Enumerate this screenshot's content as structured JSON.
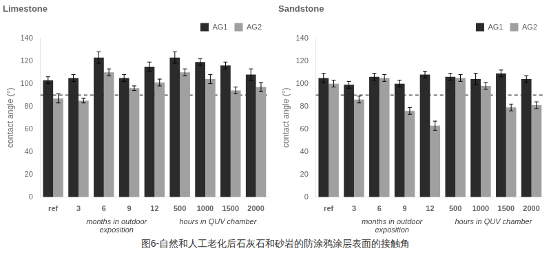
{
  "title": "图6-自然和人工老化后石灰石和砂岩的防涂鸦涂层表面的接触角",
  "chart_data": [
    {
      "type": "bar",
      "title": "Limestone",
      "categories": [
        "ref",
        "3",
        "6",
        "9",
        "12",
        "500",
        "1000",
        "1500",
        "2000"
      ],
      "series": [
        {
          "name": "AG1",
          "color": "#2b2b2b",
          "values": [
            103,
            105,
            123,
            105,
            115,
            123,
            119,
            116,
            108
          ],
          "errors": [
            3,
            3,
            5,
            3,
            4,
            5,
            3,
            3,
            5
          ]
        },
        {
          "name": "AG2",
          "color": "#a0a0a0",
          "values": [
            87,
            85,
            110,
            96,
            101,
            110,
            104,
            94,
            97
          ],
          "errors": [
            4,
            2,
            3,
            2,
            3,
            3,
            4,
            3,
            4
          ]
        }
      ],
      "ylabel": "contact angle (°)",
      "ylim": [
        0,
        140
      ],
      "yticks": [
        0,
        20,
        40,
        60,
        80,
        100,
        120,
        140
      ],
      "grid": false,
      "legend": "upper right",
      "annotations": [
        {
          "type": "hline",
          "y": 90,
          "line_style": "dashed",
          "color": "#000000"
        },
        {
          "type": "text",
          "text": "months in outdoor\nexposition",
          "categories": [
            "3",
            "6",
            "9",
            "12"
          ]
        },
        {
          "type": "text",
          "text": "hours in QUV chamber",
          "categories": [
            "500",
            "1000",
            "1500",
            "2000"
          ]
        }
      ]
    },
    {
      "type": "bar",
      "title": "Sandstone",
      "categories": [
        "ref",
        "3",
        "6",
        "9",
        "12",
        "500",
        "1000",
        "1500",
        "2000"
      ],
      "series": [
        {
          "name": "AG1",
          "color": "#2b2b2b",
          "values": [
            105,
            99,
            106,
            100,
            108,
            106,
            104,
            109,
            104
          ],
          "errors": [
            4,
            3,
            3,
            3,
            3,
            3,
            5,
            3,
            3
          ]
        },
        {
          "name": "AG2",
          "color": "#a0a0a0",
          "values": [
            100,
            86,
            105,
            76,
            63,
            105,
            98,
            79,
            81
          ],
          "errors": [
            3,
            3,
            3,
            3,
            4,
            3,
            3,
            3,
            3
          ]
        }
      ],
      "ylabel": "contact angle (°)",
      "ylim": [
        0,
        140
      ],
      "yticks": [
        0,
        20,
        40,
        60,
        80,
        100,
        120,
        140
      ],
      "grid": false,
      "legend": "upper right",
      "annotations": [
        {
          "type": "hline",
          "y": 90,
          "line_style": "dashed",
          "color": "#000000"
        },
        {
          "type": "text",
          "text": "months in outdoor\nexposition",
          "categories": [
            "3",
            "6",
            "9",
            "12"
          ]
        },
        {
          "type": "text",
          "text": "hours in QUV chamber",
          "categories": [
            "500",
            "1000",
            "1500",
            "2000"
          ]
        }
      ]
    }
  ]
}
